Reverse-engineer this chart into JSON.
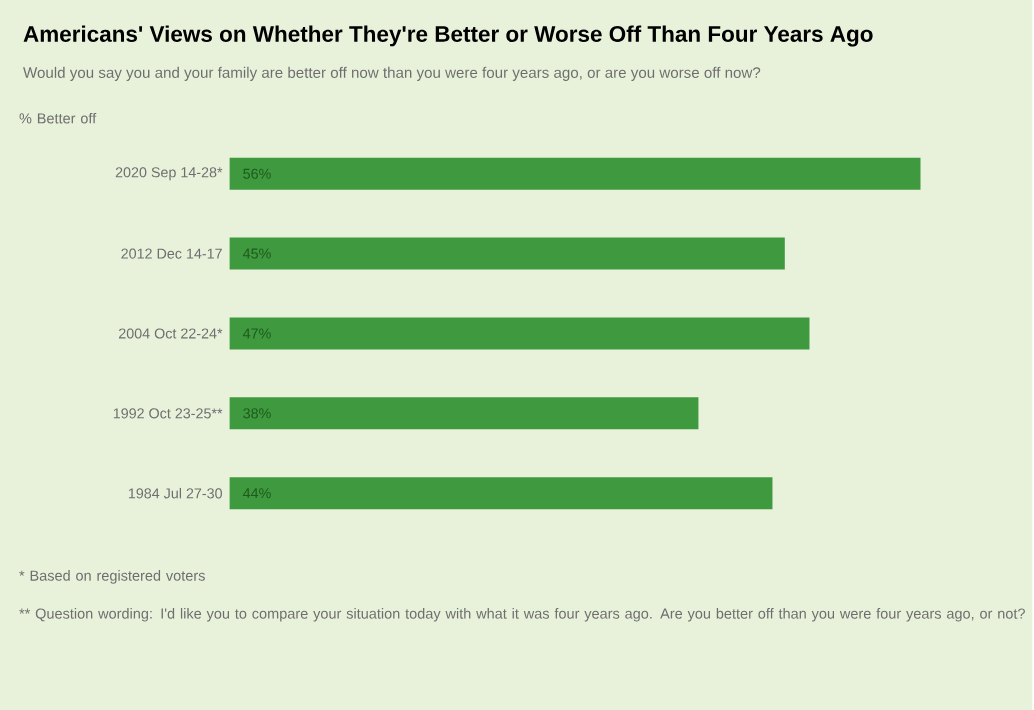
{
  "chart_data": {
    "type": "bar",
    "orientation": "horizontal",
    "title": "Americans' Views on Whether They're Better or Worse Off Than Four Years Ago",
    "subtitle": "Would you say you and your family are better off now than you were four years ago, or are you worse off now?",
    "categories": [
      "2020 Sep 14-28*",
      "2012 Dec 14-17",
      "2004 Oct 22-24*",
      "1992 Oct 23-25**",
      "1984 Jul 27-30"
    ],
    "values": [
      56,
      45,
      47,
      38,
      44
    ],
    "value_labels": [
      "56%",
      "45%",
      "47%",
      "38%",
      "44%"
    ],
    "color": "#3f9a3f",
    "annotations": [
      "% Better off",
      "* Based on registered voters",
      "** Question wording: I'd like you to compare your situation today with what it was four years ago. Are you better off than you were four years ago, or not?"
    ]
  }
}
